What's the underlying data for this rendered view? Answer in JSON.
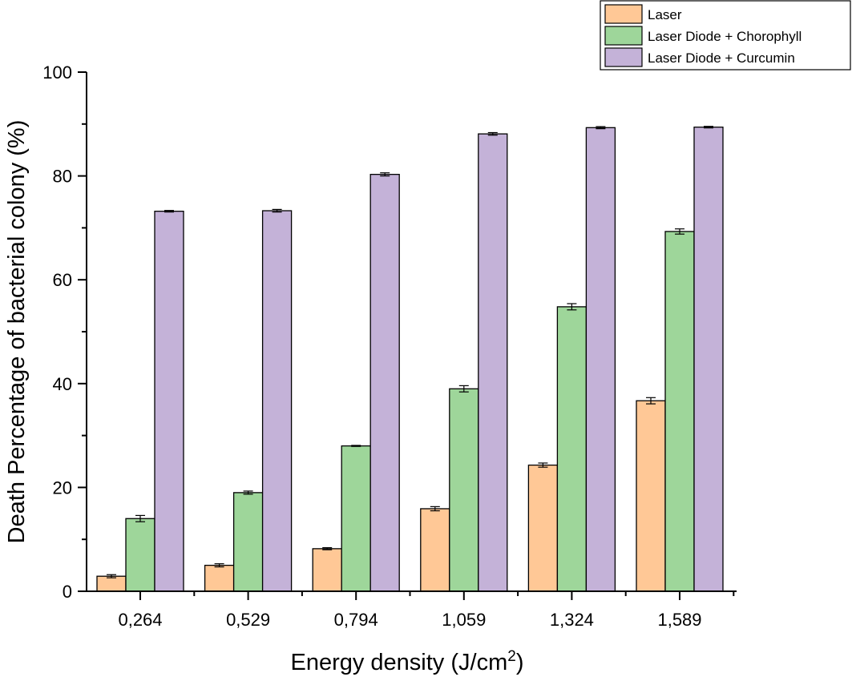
{
  "chart_data": {
    "type": "bar",
    "title": "",
    "xlabel": "Energy density (J/cm",
    "xlabel_sup": "2",
    "xlabel_end": ")",
    "ylabel": "Death Percentage of bacterial colony (%)",
    "ylim": [
      0,
      100
    ],
    "yticks": [
      "0",
      "20",
      "40",
      "60",
      "80",
      "100"
    ],
    "categories": [
      "0,264",
      "0,529",
      "0,794",
      "1,059",
      "1,324",
      "1,589"
    ],
    "grid": false,
    "legend_position": "top-right",
    "series": [
      {
        "name": "Laser",
        "color": "#FFC896",
        "values": [
          2.9,
          5.0,
          8.2,
          15.9,
          24.3,
          36.7
        ],
        "errors": [
          0.3,
          0.3,
          0.2,
          0.4,
          0.4,
          0.6
        ]
      },
      {
        "name": "Laser Diode + Chorophyll",
        "color": "#9ED69A",
        "values": [
          14.0,
          19.0,
          28.0,
          39.0,
          54.8,
          69.3
        ],
        "errors": [
          0.6,
          0.3,
          0.1,
          0.6,
          0.6,
          0.5
        ]
      },
      {
        "name": "Laser Diode + Curcumin",
        "color": "#C4B2D8",
        "values": [
          73.2,
          73.3,
          80.3,
          88.1,
          89.3,
          89.4
        ],
        "errors": [
          0.15,
          0.25,
          0.3,
          0.25,
          0.2,
          0.15
        ]
      }
    ]
  }
}
